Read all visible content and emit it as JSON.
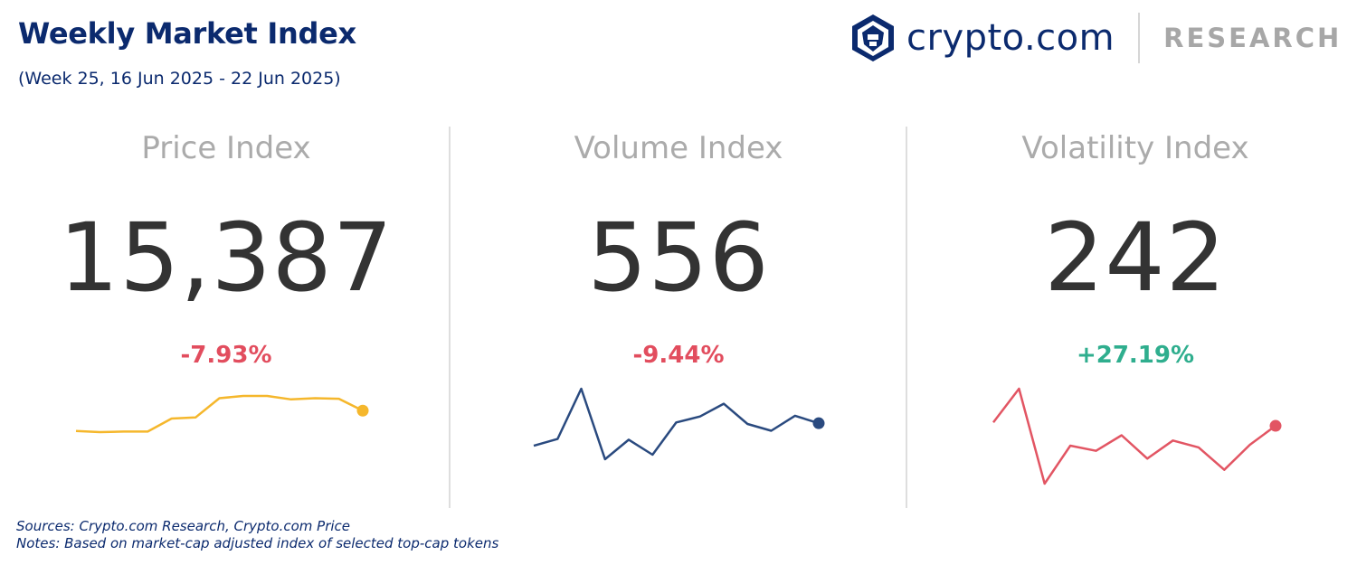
{
  "header": {
    "title": "Weekly Market Index",
    "subtitle": "(Week 25, 16 Jun 2025 - 22 Jun 2025)"
  },
  "logo": {
    "icon": "crypto-com-lion-shield-icon",
    "wordmark": "crypto.com",
    "tagline": "RESEARCH"
  },
  "colors": {
    "navy": "#0b2a6e",
    "negative": "#e24d5e",
    "positive": "#2fae8e",
    "price_line": "#f5b72c",
    "volume_line": "#2a4a7f",
    "volatility_line": "#e25563",
    "heading_grey": "#ababab",
    "value_dark": "#333333"
  },
  "panels": [
    {
      "title": "Price Index",
      "value": "15,387",
      "change": "-7.93%",
      "change_color": "#e24d5e",
      "line_color": "#f5b72c"
    },
    {
      "title": "Volume Index",
      "value": "556",
      "change": "-9.44%",
      "change_color": "#e24d5e",
      "line_color": "#2a4a7f"
    },
    {
      "title": "Volatility Index",
      "value": "242",
      "change": "+27.19%",
      "change_color": "#2fae8e",
      "line_color": "#e25563"
    }
  ],
  "chart_data": [
    {
      "type": "line",
      "title": "Price Index",
      "series": [
        {
          "values": [
            19,
            18,
            18.5,
            18.5,
            30,
            31,
            48,
            50,
            50,
            47,
            48,
            47.5,
            37
          ]
        }
      ]
    },
    {
      "type": "line",
      "title": "Volume Index",
      "series": [
        {
          "values": [
            22,
            31,
            98,
            4,
            30,
            10,
            53,
            61,
            78,
            51,
            42,
            62,
            52
          ]
        }
      ]
    },
    {
      "type": "line",
      "title": "Volatility Index",
      "series": [
        {
          "values": [
            71,
            110,
            0,
            44,
            38,
            56,
            29,
            50,
            42,
            16,
            45,
            67
          ]
        }
      ]
    }
  ],
  "footer": {
    "sources": "Sources: Crypto.com Research,  Crypto.com Price",
    "notes": "Notes: Based on market-cap adjusted index of selected top-cap tokens"
  }
}
